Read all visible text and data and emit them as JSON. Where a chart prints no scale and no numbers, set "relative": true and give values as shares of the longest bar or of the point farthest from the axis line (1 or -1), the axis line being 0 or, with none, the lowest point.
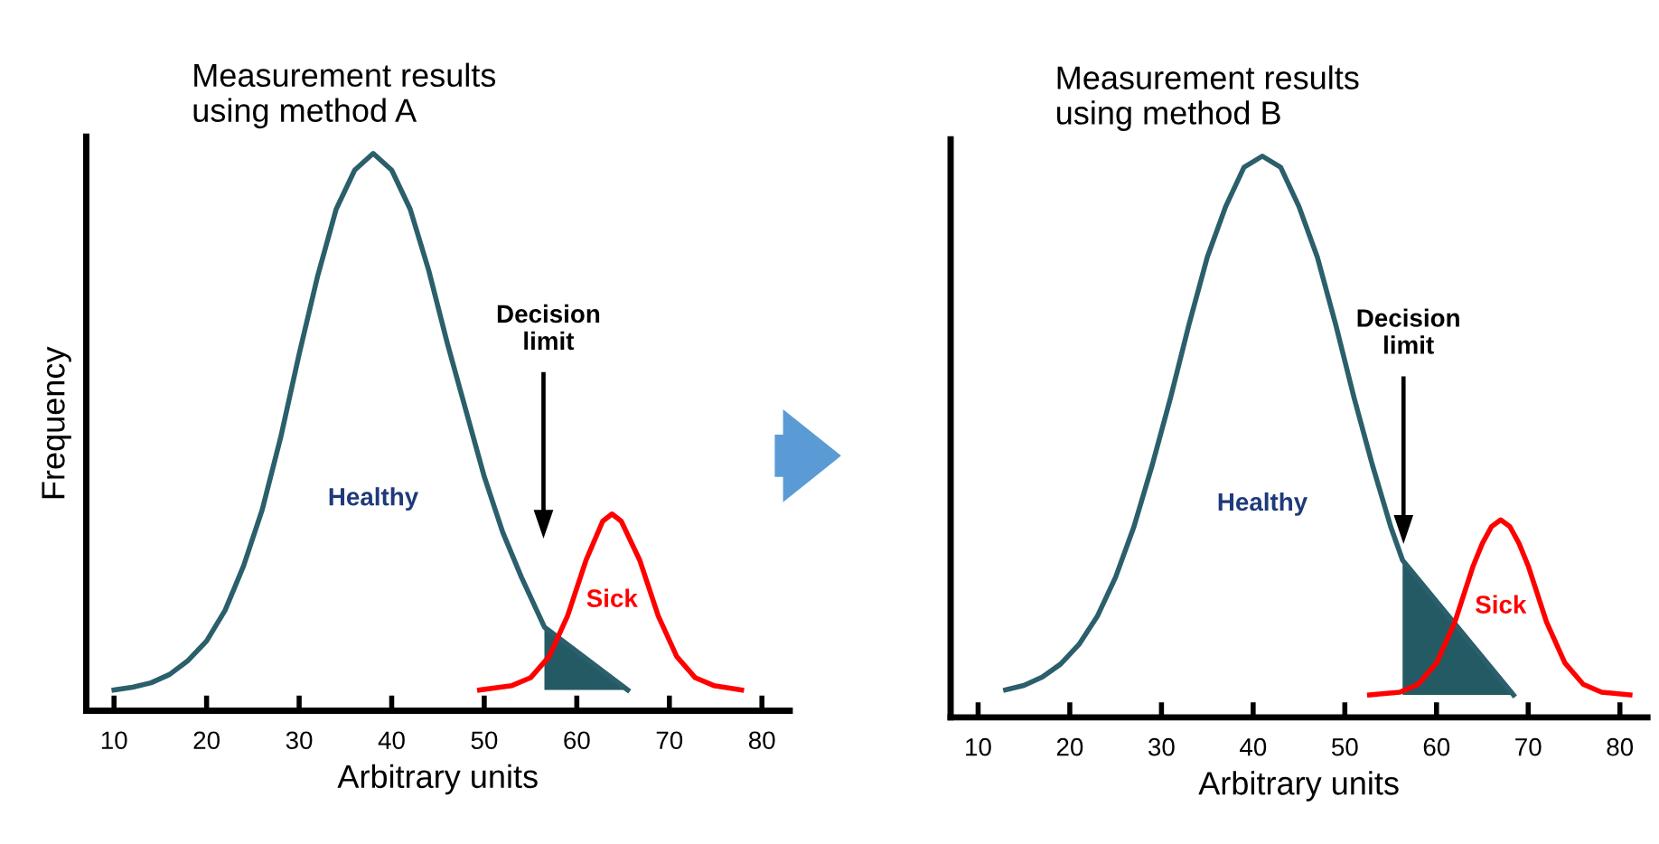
{
  "chart_data": [
    {
      "type": "line",
      "title": "Measurement results\nusing method A",
      "xlabel": "Arbitrary units",
      "ylabel": "Frequency",
      "relative": true,
      "xlim": [
        7,
        83
      ],
      "xticks": [
        10,
        20,
        30,
        40,
        50,
        60,
        70,
        80
      ],
      "tick_labels": "x",
      "grid": false,
      "legend": false,
      "series": [
        {
          "name": "Healthy",
          "color": "#2a5f6b",
          "x": [
            10,
            12,
            14,
            16,
            18,
            20,
            22,
            24,
            26,
            28,
            30,
            32,
            34,
            36,
            38,
            40,
            42,
            44,
            46,
            48,
            50,
            52,
            54,
            56.5,
            65.5
          ],
          "values": [
            0.037,
            0.042,
            0.05,
            0.065,
            0.09,
            0.125,
            0.18,
            0.26,
            0.36,
            0.49,
            0.64,
            0.78,
            0.9,
            0.97,
            1.0,
            0.97,
            0.9,
            0.79,
            0.66,
            0.54,
            0.42,
            0.32,
            0.24,
            0.15,
            0.037
          ]
        },
        {
          "name": "Sick",
          "color": "#ff0000",
          "x": [
            49.5,
            53,
            55,
            57,
            59,
            61,
            62.8,
            63.8,
            64.8,
            66.8,
            68.8,
            70.8,
            72.8,
            74.8,
            77.8
          ],
          "values": [
            0.037,
            0.045,
            0.059,
            0.097,
            0.17,
            0.27,
            0.34,
            0.353,
            0.34,
            0.27,
            0.17,
            0.097,
            0.059,
            0.045,
            0.037
          ]
        },
        {
          "type": "area",
          "color": "#245a64",
          "x": [
            56.5,
            65.5
          ],
          "values": [
            0.15,
            0.037
          ]
        }
      ],
      "annotations": [
        "Decision\nlimit"
      ]
    },
    {
      "type": "line",
      "title": "Measurement results\nusing method B",
      "xlabel": "Arbitrary units",
      "relative": true,
      "xlim": [
        7,
        83
      ],
      "xticks": [
        10,
        20,
        30,
        40,
        50,
        60,
        70,
        80
      ],
      "tick_labels": "x",
      "grid": false,
      "legend": false,
      "series": [
        {
          "name": "Healthy",
          "color": "#2a5f6b",
          "x": [
            13,
            15,
            17,
            19,
            21,
            23,
            25,
            27,
            29,
            31,
            33,
            35,
            37,
            39,
            41,
            43,
            45,
            47,
            49,
            51,
            53,
            55,
            56.3,
            68.4
          ],
          "values": [
            0.049,
            0.057,
            0.072,
            0.095,
            0.13,
            0.18,
            0.25,
            0.34,
            0.45,
            0.57,
            0.7,
            0.82,
            0.91,
            0.98,
            1.0,
            0.98,
            0.91,
            0.82,
            0.7,
            0.57,
            0.45,
            0.34,
            0.28,
            0.04
          ]
        },
        {
          "name": "Sick",
          "color": "#ff0000",
          "x": [
            52.7,
            56,
            58,
            60,
            62,
            64,
            65,
            66,
            67,
            68,
            69,
            70,
            72,
            74,
            76,
            78,
            81.1
          ],
          "values": [
            0.04,
            0.045,
            0.059,
            0.097,
            0.17,
            0.27,
            0.31,
            0.34,
            0.352,
            0.34,
            0.31,
            0.27,
            0.17,
            0.097,
            0.059,
            0.045,
            0.04
          ]
        },
        {
          "type": "area",
          "color": "#245a64",
          "x": [
            56.3,
            68.4
          ],
          "values": [
            0.28,
            0.04
          ]
        }
      ],
      "annotations": [
        "Decision\nlimit"
      ]
    }
  ]
}
